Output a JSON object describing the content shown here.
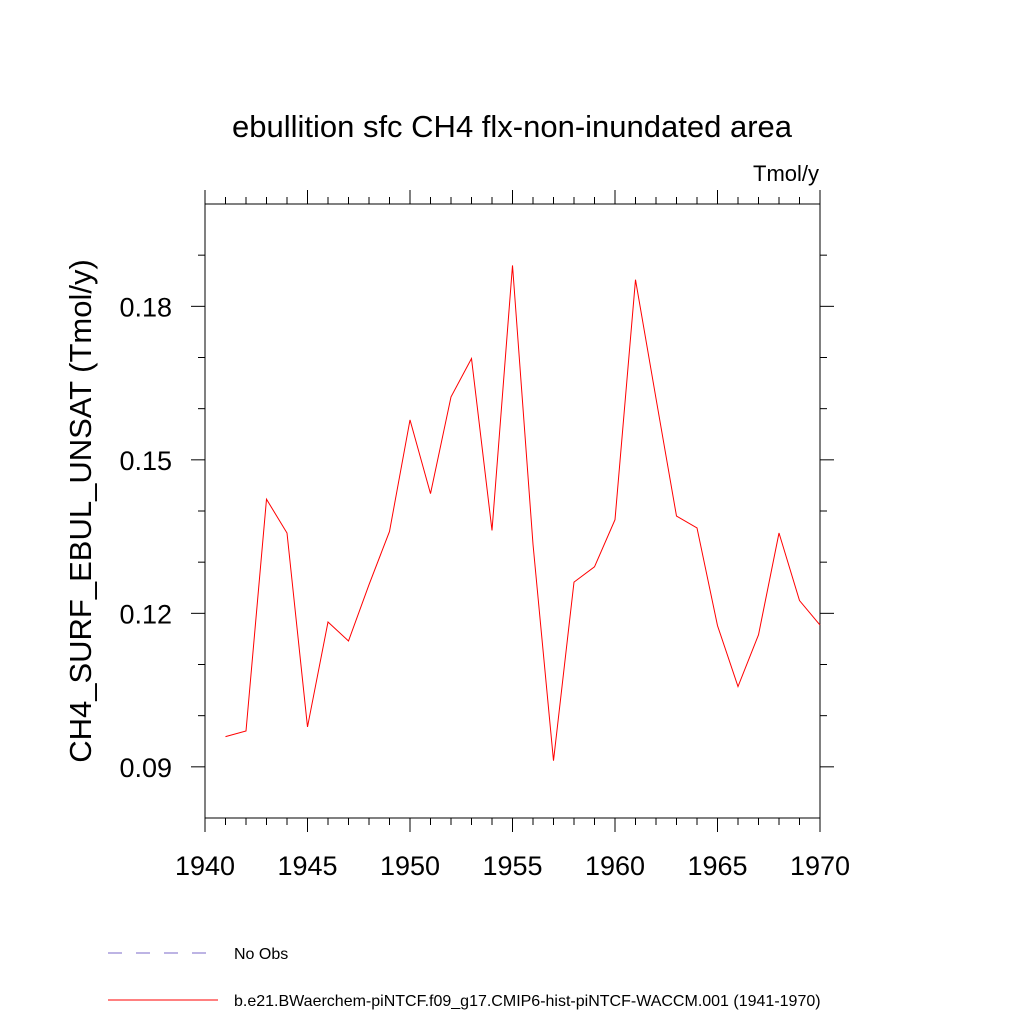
{
  "chart_data": {
    "type": "line",
    "title": "ebullition sfc CH4 flx-non-inundated area",
    "units_label": "Tmol/y",
    "ylabel": "CH4_SURF_EBUL_UNSAT  (Tmol/y)",
    "xlabel": "",
    "xlim": [
      1940,
      1970
    ],
    "ylim": [
      0.08,
      0.2
    ],
    "x_ticks": [
      1940,
      1945,
      1950,
      1955,
      1960,
      1965,
      1970
    ],
    "x_tick_labels": [
      "1940",
      "1945",
      "1950",
      "1955",
      "1960",
      "1965",
      "1970"
    ],
    "y_ticks": [
      0.09,
      0.12,
      0.15,
      0.18
    ],
    "y_tick_labels": [
      "0.09",
      "0.12",
      "0.15",
      "0.18"
    ],
    "grid": false,
    "legend_position": "bottom",
    "x": [
      1941,
      1942,
      1943,
      1944,
      1945,
      1946,
      1947,
      1948,
      1949,
      1950,
      1951,
      1952,
      1953,
      1954,
      1955,
      1956,
      1957,
      1958,
      1959,
      1960,
      1961,
      1962,
      1963,
      1964,
      1965,
      1966,
      1967,
      1968,
      1969,
      1970
    ],
    "series": [
      {
        "name": "b.e21.BWaerchem-piNTCF.f09_g17.CMIP6-hist-piNTCF-WACCM.001 (1941-1970)",
        "color": "#ff0000",
        "dash": "solid",
        "values": [
          0.0959,
          0.097,
          0.1423,
          0.1357,
          0.0978,
          0.1183,
          0.1146,
          0.1256,
          0.136,
          0.1578,
          0.1434,
          0.1623,
          0.1698,
          0.1362,
          0.188,
          0.1335,
          0.0912,
          0.1261,
          0.1291,
          0.1383,
          0.1852,
          0.162,
          0.139,
          0.1367,
          0.1176,
          0.1057,
          0.1158,
          0.1357,
          0.1225,
          0.1177
        ]
      }
    ],
    "legend": [
      {
        "label": "No Obs",
        "color": "#7b68c8",
        "dash": "dashed"
      },
      {
        "label": "b.e21.BWaerchem-piNTCF.f09_g17.CMIP6-hist-piNTCF-WACCM.001 (1941-1970)",
        "color": "#ff0000",
        "dash": "solid"
      }
    ]
  }
}
